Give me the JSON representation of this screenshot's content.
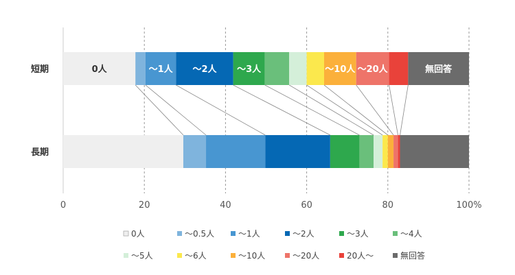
{
  "chart_data": {
    "type": "bar",
    "orientation": "horizontal",
    "stacked": true,
    "connector_lines": true,
    "grid": "dashed vertical",
    "xlim": [
      0,
      100
    ],
    "x_ticks": [
      "0",
      "20",
      "40",
      "60",
      "80",
      "100%"
    ],
    "x_tick_values": [
      0,
      20,
      40,
      60,
      80,
      100
    ],
    "categories": [
      "短期",
      "長期"
    ],
    "series": [
      {
        "name": "0人",
        "color": "#efefef",
        "text_color": "#333333",
        "values": [
          17.8,
          29.6
        ],
        "segment_label": [
          "0人",
          ""
        ]
      },
      {
        "name": "～0.5人",
        "color": "#7fb4dd",
        "text_color": "#ffffff",
        "values": [
          2.5,
          5.6
        ],
        "segment_label": [
          "",
          ""
        ]
      },
      {
        "name": "～1人",
        "color": "#4896d1",
        "text_color": "#ffffff",
        "values": [
          7.5,
          14.6
        ],
        "segment_label": [
          "～1人",
          ""
        ]
      },
      {
        "name": "～2人",
        "color": "#0568b4",
        "text_color": "#ffffff",
        "values": [
          14.1,
          16.0
        ],
        "segment_label": [
          "～2人",
          ""
        ]
      },
      {
        "name": "～3人",
        "color": "#2ea84d",
        "text_color": "#ffffff",
        "values": [
          7.8,
          7.2
        ],
        "segment_label": [
          "～3人",
          ""
        ]
      },
      {
        "name": "～4人",
        "color": "#6abf7b",
        "text_color": "#ffffff",
        "values": [
          6.0,
          3.5
        ],
        "segment_label": [
          "",
          ""
        ]
      },
      {
        "name": "～5人",
        "color": "#d4efd9",
        "text_color": "#333333",
        "values": [
          4.3,
          2.2
        ],
        "segment_label": [
          "",
          ""
        ]
      },
      {
        "name": "～6人",
        "color": "#fbe84d",
        "text_color": "#333333",
        "values": [
          4.3,
          1.3
        ],
        "segment_label": [
          "",
          ""
        ]
      },
      {
        "name": "～10人",
        "color": "#fbb03b",
        "text_color": "#ffffff",
        "values": [
          7.9,
          1.4
        ],
        "segment_label": [
          "～10人",
          ""
        ]
      },
      {
        "name": "～20人",
        "color": "#ee7469",
        "text_color": "#ffffff",
        "values": [
          8.1,
          1.1
        ],
        "segment_label": [
          "～20人",
          ""
        ]
      },
      {
        "name": "20人～",
        "color": "#e9423a",
        "text_color": "#ffffff",
        "values": [
          4.7,
          0.5
        ],
        "segment_label": [
          "",
          ""
        ]
      },
      {
        "name": "無回答",
        "color": "#6b6b6b",
        "text_color": "#ffffff",
        "values": [
          15.0,
          17.0
        ],
        "segment_label": [
          "無回答",
          ""
        ]
      }
    ]
  }
}
